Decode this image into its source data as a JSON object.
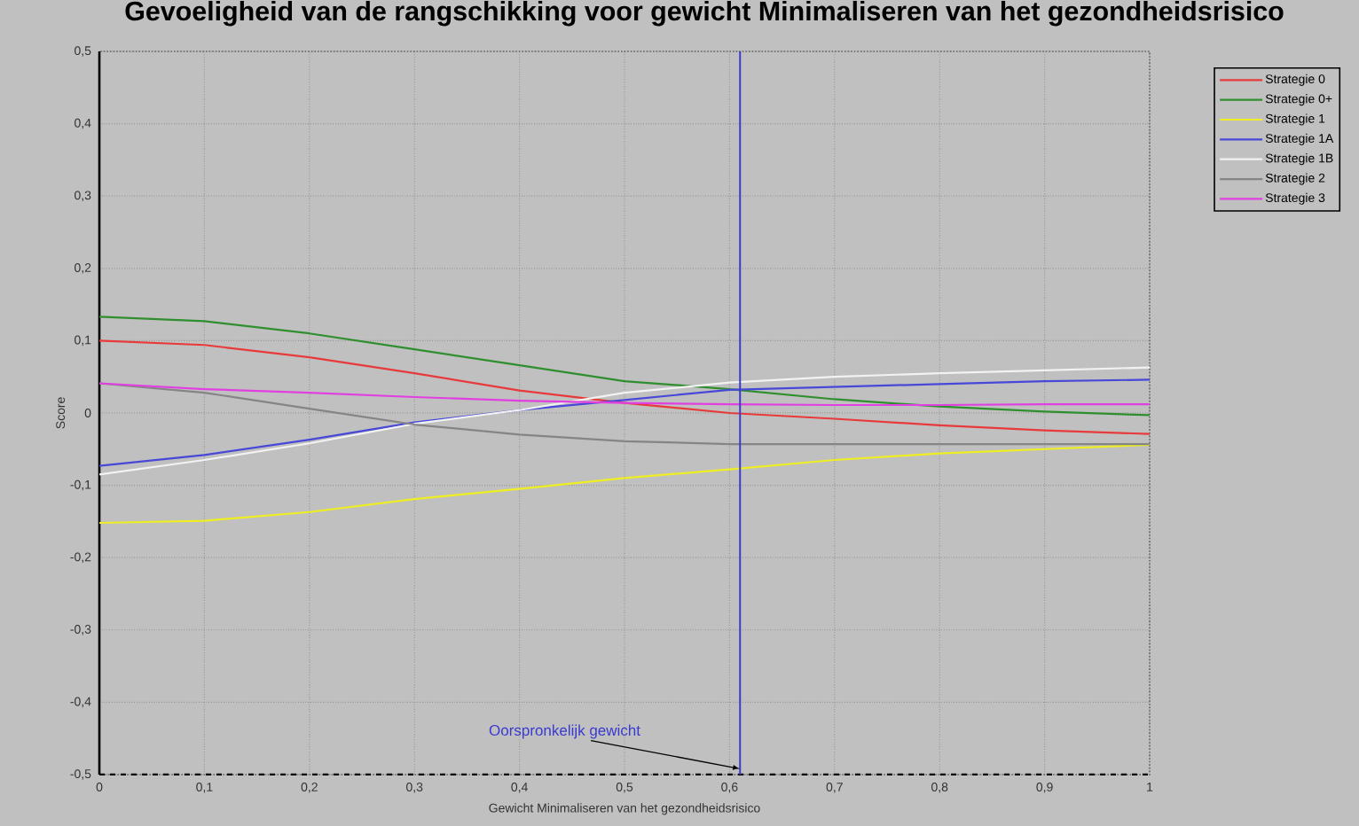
{
  "chart_data": {
    "type": "line",
    "title": "Gevoeligheid van de rangschikking voor gewicht Minimaliseren van het gezondheidsrisico",
    "xlabel": "Gewicht Minimaliseren van het gezondheidsrisico",
    "ylabel": "Score",
    "x": [
      0,
      0.1,
      0.2,
      0.3,
      0.4,
      0.5,
      0.6,
      0.7,
      0.8,
      0.9,
      1
    ],
    "series": [
      {
        "name": "Strategie 0",
        "color": "#e83a3a",
        "values": [
          0.1,
          0.094,
          0.077,
          0.055,
          0.031,
          0.014,
          0.0,
          -0.008,
          -0.017,
          -0.024,
          -0.029
        ]
      },
      {
        "name": "Strategie 0+",
        "color": "#2f8f2f",
        "values": [
          0.133,
          0.127,
          0.11,
          0.088,
          0.066,
          0.044,
          0.033,
          0.019,
          0.009,
          0.002,
          -0.003
        ]
      },
      {
        "name": "Strategie 1",
        "color": "#eeee22",
        "values": [
          -0.152,
          -0.149,
          -0.137,
          -0.119,
          -0.105,
          -0.09,
          -0.078,
          -0.065,
          -0.056,
          -0.05,
          -0.044
        ]
      },
      {
        "name": "Strategie 1A",
        "color": "#4848d8",
        "values": [
          -0.073,
          -0.058,
          -0.037,
          -0.013,
          0.004,
          0.018,
          0.032,
          0.036,
          0.04,
          0.044,
          0.046
        ]
      },
      {
        "name": "Strategie 1B",
        "color": "#f2f2f2",
        "values": [
          -0.085,
          -0.065,
          -0.042,
          -0.015,
          0.004,
          0.028,
          0.042,
          0.05,
          0.055,
          0.059,
          0.063
        ]
      },
      {
        "name": "Strategie 2",
        "color": "#858585",
        "values": [
          0.041,
          0.028,
          0.006,
          -0.016,
          -0.03,
          -0.039,
          -0.043,
          -0.043,
          -0.043,
          -0.043,
          -0.043
        ]
      },
      {
        "name": "Strategie 3",
        "color": "#e040e0",
        "values": [
          0.041,
          0.033,
          0.028,
          0.022,
          0.017,
          0.014,
          0.012,
          0.011,
          0.011,
          0.012,
          0.012
        ]
      }
    ],
    "xlim": [
      0,
      1
    ],
    "ylim": [
      -0.5,
      0.5
    ],
    "xticks": [
      0,
      {
        "value": 0.1,
        "label": "0,1"
      },
      {
        "value": 0.2,
        "label": "0,2"
      },
      {
        "value": 0.3,
        "label": "0,3"
      },
      {
        "value": 0.4,
        "label": "0,4"
      },
      {
        "value": 0.5,
        "label": "0,5"
      },
      {
        "value": 0.6,
        "label": "0,6"
      },
      {
        "value": 0.7,
        "label": "0,7"
      },
      {
        "value": 0.8,
        "label": "0,8"
      },
      {
        "value": 0.9,
        "label": "0,9"
      },
      1
    ],
    "yticks": [
      {
        "value": -0.5,
        "label": "-0,5"
      },
      {
        "value": -0.4,
        "label": "-0,4"
      },
      {
        "value": -0.3,
        "label": "-0,3"
      },
      {
        "value": -0.2,
        "label": "-0,2"
      },
      {
        "value": -0.1,
        "label": "-0,1"
      },
      0,
      {
        "value": 0.1,
        "label": "0,1"
      },
      {
        "value": 0.2,
        "label": "0,2"
      },
      {
        "value": 0.3,
        "label": "0,3"
      },
      {
        "value": 0.4,
        "label": "0,4"
      },
      {
        "value": 0.5,
        "label": "0,5"
      }
    ],
    "ref_lines": [
      {
        "axis": "x",
        "value": 0.61,
        "label": "Oorspronkelijk gewicht",
        "color": "#3a3ad0"
      }
    ],
    "grid": true,
    "legend": "top right"
  }
}
